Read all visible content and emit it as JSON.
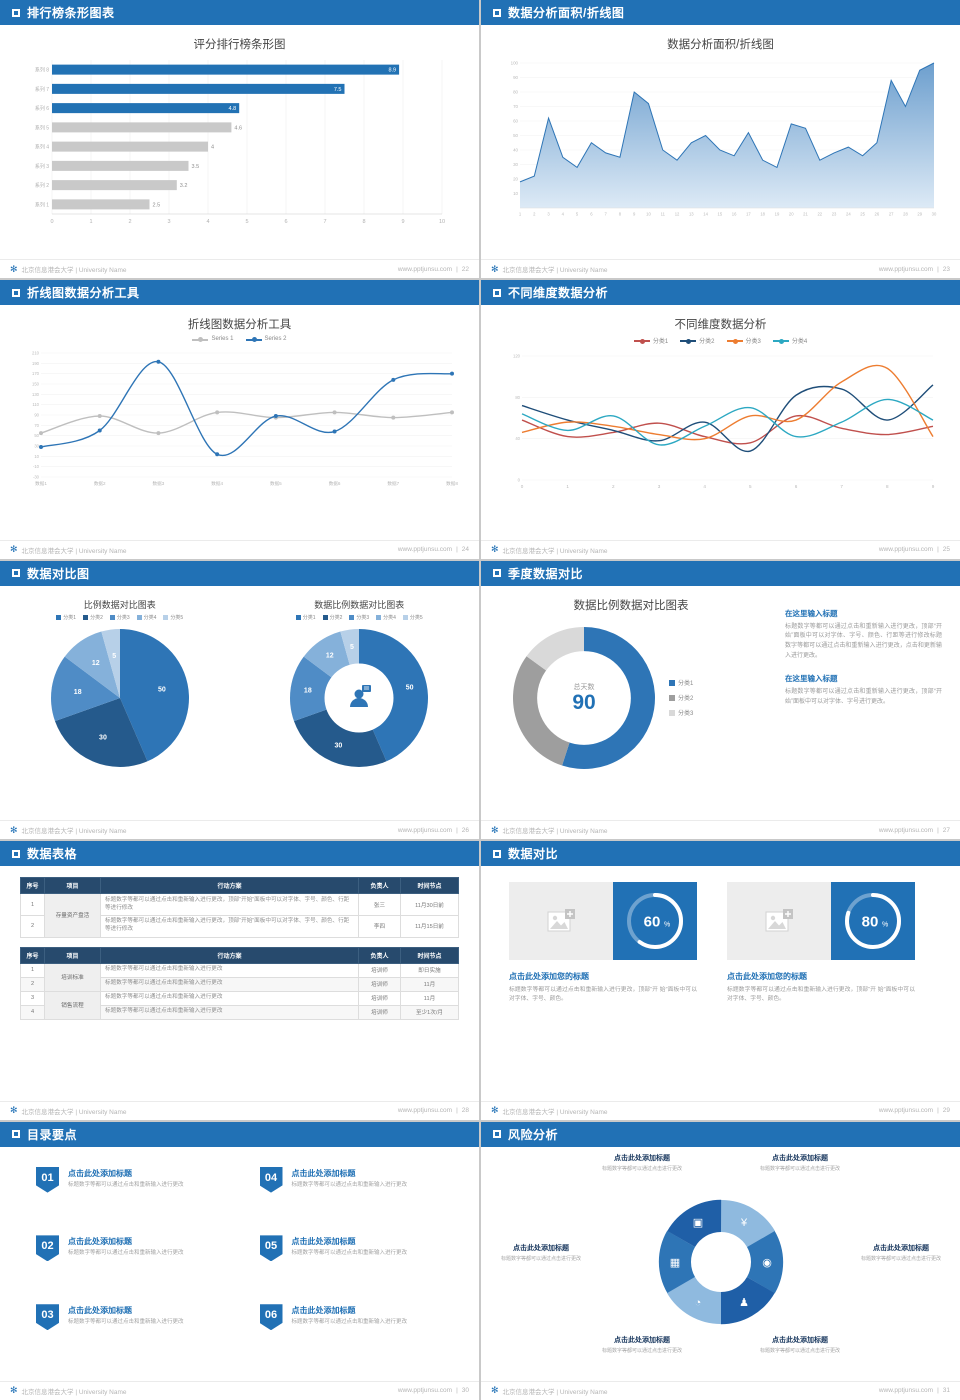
{
  "footer": {
    "logo": "✻",
    "org": "北京信息港会大学 | University Name",
    "url": "www.pptjunsu.com"
  },
  "slides": {
    "s22": {
      "header": "排行榜条形图表",
      "page": "22",
      "title": "评分排行榜条形图",
      "chart": {
        "type": "barh",
        "categories": [
          "系列 8",
          "系列 7",
          "系列 6",
          "系列 5",
          "系列 4",
          "系列 3",
          "系列 2",
          "系列 1"
        ],
        "values": [
          8.9,
          7.5,
          4.8,
          4.6,
          4,
          3.5,
          3.2,
          2.5
        ],
        "colors": [
          "#2272b4",
          "#2272b4",
          "#2272b4",
          "#c9c9c9",
          "#c9c9c9",
          "#c9c9c9",
          "#c9c9c9",
          "#c9c9c9"
        ],
        "label_inside": [
          true,
          true,
          true,
          false,
          false,
          false,
          false,
          false
        ],
        "xlim": [
          0,
          10
        ],
        "xticks": [
          0,
          1,
          2,
          3,
          4,
          5,
          6,
          7,
          8,
          9,
          10
        ]
      }
    },
    "s23": {
      "header": "数据分析面积/折线图",
      "page": "23",
      "title": "数据分析面积/折线图",
      "chart": {
        "type": "area",
        "x": [
          "1",
          "2",
          "3",
          "4",
          "5",
          "6",
          "7",
          "8",
          "9",
          "10",
          "11",
          "12",
          "13",
          "14",
          "15",
          "16",
          "17",
          "18",
          "19",
          "20",
          "21",
          "22",
          "23",
          "24",
          "25",
          "26",
          "27",
          "28",
          "29",
          "30"
        ],
        "values": [
          18,
          22,
          62,
          35,
          28,
          45,
          38,
          35,
          80,
          72,
          40,
          33,
          45,
          50,
          40,
          36,
          52,
          33,
          28,
          58,
          55,
          33,
          38,
          42,
          36,
          45,
          88,
          70,
          95,
          100
        ],
        "ylim": [
          0,
          100
        ],
        "yticks": [
          10,
          20,
          30,
          40,
          50,
          60,
          70,
          80,
          90,
          100
        ],
        "line_color": "#2e75b6",
        "fill_from": "#6d9fce",
        "fill_to": "#ddeaf6"
      }
    },
    "s24": {
      "header": "折线图数据分析工具",
      "page": "24",
      "title": "折线图数据分析工具",
      "legend": [
        {
          "label": "Series 1",
          "color": "#bfbfbf"
        },
        {
          "label": "Series 2",
          "color": "#2e75b6"
        }
      ],
      "chart": {
        "type": "line",
        "categories": [
          "数据1",
          "数据2",
          "数据3",
          "数据4",
          "数据5",
          "数据6",
          "数据7",
          "数据8"
        ],
        "ylim": [
          -30,
          210
        ],
        "yticks": [
          210,
          190,
          170,
          150,
          130,
          110,
          90,
          70,
          50,
          30,
          10,
          -10,
          -30
        ],
        "markers": true,
        "series": [
          {
            "name": "Series 1",
            "color": "#bfbfbf",
            "values": [
              55,
              88,
              55,
              95,
              85,
              95,
              85,
              95
            ]
          },
          {
            "name": "Series 2",
            "color": "#2e75b6",
            "values": [
              28,
              60,
              193,
              14,
              88,
              58,
              158,
              170
            ]
          }
        ]
      }
    },
    "s25": {
      "header": "不同维度数据分析",
      "page": "25",
      "title": "不同维度数据分析",
      "legend": [
        {
          "label": "分类1",
          "color": "#c0504d"
        },
        {
          "label": "分类2",
          "color": "#1f4e79"
        },
        {
          "label": "分类3",
          "color": "#ed7d31"
        },
        {
          "label": "分类4",
          "color": "#2ca8c2"
        }
      ],
      "chart": {
        "type": "line",
        "categories": [
          "0",
          "1",
          "2",
          "3",
          "4",
          "5",
          "6",
          "7",
          "8",
          "9"
        ],
        "ylim": [
          0,
          120
        ],
        "yticks": [
          0,
          40,
          80,
          120
        ],
        "markers": false,
        "series": [
          {
            "name": "分类1",
            "color": "#c0504d",
            "values": [
              58,
              42,
              46,
              55,
              42,
              36,
              62,
              50,
              44,
              52
            ]
          },
          {
            "name": "分类2",
            "color": "#1f4e79",
            "values": [
              72,
              58,
              48,
              38,
              56,
              28,
              82,
              88,
              58,
              92
            ]
          },
          {
            "name": "分类3",
            "color": "#ed7d31",
            "values": [
              46,
              56,
              52,
              44,
              40,
              62,
              58,
              95,
              108,
              42
            ]
          },
          {
            "name": "分类4",
            "color": "#2ca8c2",
            "values": [
              64,
              48,
              62,
              34,
              52,
              70,
              42,
              56,
              78,
              58
            ]
          }
        ]
      }
    },
    "s26": {
      "header": "数据对比图",
      "page": "26",
      "left": {
        "title": "比例数据对比图表",
        "legend": [
          {
            "label": "分类1",
            "color": "#2e75b6"
          },
          {
            "label": "分类2",
            "color": "#255a8c"
          },
          {
            "label": "分类3",
            "color": "#4f8cc6"
          },
          {
            "label": "分类4",
            "color": "#85b1da"
          },
          {
            "label": "分类5",
            "color": "#b7d0e8"
          }
        ],
        "chart": {
          "type": "pie",
          "values": [
            50,
            30,
            18,
            12,
            5
          ],
          "colors": [
            "#2e75b6",
            "#255a8c",
            "#4f8cc6",
            "#85b1da",
            "#b7d0e8"
          ],
          "inner": 0
        }
      },
      "right": {
        "title": "数据比例数据对比图表",
        "legend": [
          {
            "label": "分类1",
            "color": "#2e75b6"
          },
          {
            "label": "分类2",
            "color": "#255a8c"
          },
          {
            "label": "分类3",
            "color": "#4f8cc6"
          },
          {
            "label": "分类4",
            "color": "#85b1da"
          },
          {
            "label": "分类5",
            "color": "#b7d0e8"
          }
        ],
        "chart": {
          "type": "pie",
          "values": [
            50,
            30,
            18,
            12,
            5
          ],
          "colors": [
            "#2e75b6",
            "#255a8c",
            "#4f8cc6",
            "#85b1da",
            "#b7d0e8"
          ],
          "inner": 0.5,
          "center_icon": "person"
        }
      }
    },
    "s27": {
      "header": "季度数据对比",
      "page": "27",
      "title": "数据比例数据对比图表",
      "center_label": "总天数",
      "center_value": "90",
      "legend": [
        {
          "label": "分类1",
          "color": "#2e75b6"
        },
        {
          "label": "分类2",
          "color": "#9e9e9e"
        },
        {
          "label": "分类3",
          "color": "#d9d9d9"
        }
      ],
      "chart": {
        "type": "pie",
        "values": [
          55,
          30,
          15
        ],
        "colors": [
          "#2e75b6",
          "#9e9e9e",
          "#d9d9d9"
        ],
        "inner": 0.66,
        "labels": false
      },
      "blocks": [
        {
          "heading": "在这里输入标题",
          "body": "标题数字等都可以通过点击和重新输入进行更改，顶部“开始”面板中可以对字体、字号、颜色、行距等进行修改标题数字等都可以通过点击和重新输入进行更改，点击和更新输入进行更改。"
        },
        {
          "heading": "在这里输入标题",
          "body": "标题数字等都可以通过点击和重新输入进行更改，顶部“开始”面板中可以对字体、字号进行更改。"
        }
      ]
    },
    "s28": {
      "header": "数据表格",
      "page": "28",
      "t1": {
        "headers": [
          "序号",
          "项目",
          "行动方案",
          "负责人",
          "时间节点"
        ],
        "project": "存量资产盘活",
        "rows": [
          {
            "no": "1",
            "plan": "标题数字等都可以通过点击和重新输入进行更改，顶部“开始”面板中可以对字体、字号、颜色、行距等进行修改",
            "owner": "张三",
            "time": "11月30日前"
          },
          {
            "no": "2",
            "plan": "标题数字等都可以通过点击和重新输入进行更改，顶部“开始”面板中可以对字体、字号、颜色、行距等进行修改",
            "owner": "李四",
            "time": "11月15日前"
          }
        ]
      },
      "t2": {
        "headers": [
          "序号",
          "项目",
          "行动方案",
          "负责人",
          "时间节点"
        ],
        "projects": [
          "培训标准",
          "销售流程"
        ],
        "rows": [
          {
            "no": "1",
            "plan": "标题数字等都可以通过点击和重新输入进行更改",
            "owner": "培训师",
            "time": "即日实施"
          },
          {
            "no": "2",
            "plan": "标题数字等都可以通过点击和重新输入进行更改",
            "owner": "培训师",
            "time": "11月"
          },
          {
            "no": "3",
            "plan": "标题数字等都可以通过点击和重新输入进行更改",
            "owner": "培训师",
            "time": "11月"
          },
          {
            "no": "4",
            "plan": "标题数字等都可以通过点击和重新输入进行更改",
            "owner": "培训师",
            "time": "至少1次/月"
          }
        ]
      }
    },
    "s29": {
      "header": "数据对比",
      "page": "29",
      "cards": [
        {
          "ring": {
            "type": "ring",
            "pct": 60
          },
          "heading": "点击此处添加您的标题",
          "body": "标题数字等都可以通过点击和重新输入进行更改，顶部“开 始”面板中可以对字体、字号、颜色。"
        },
        {
          "ring": {
            "type": "ring",
            "pct": 80
          },
          "heading": "点击此处添加您的标题",
          "body": "标题数字等都可以通过点击和重新输入进行更改，顶部“开 始”面板中可以对字体、字号、颜色。"
        }
      ]
    },
    "s30": {
      "header": "目录要点",
      "page": "30",
      "items": [
        {
          "num": "01",
          "title": "点击此处添加标题",
          "desc": "标题数字等都可以通过点击和重新输入进行更改"
        },
        {
          "num": "02",
          "title": "点击此处添加标题",
          "desc": "标题数字等都可以通过点击和重新输入进行更改"
        },
        {
          "num": "03",
          "title": "点击此处添加标题",
          "desc": "标题数字等都可以通过点击和重新输入进行更改"
        },
        {
          "num": "04",
          "title": "点击此处添加标题",
          "desc": "标题数字等都可以通过点击和重新输入进行更改"
        },
        {
          "num": "05",
          "title": "点击此处添加标题",
          "desc": "标题数字等都可以通过点击和重新输入进行更改"
        },
        {
          "num": "06",
          "title": "点击此处添加标题",
          "desc": "标题数字等都可以通过点击和重新输入进行更改"
        }
      ]
    },
    "s31": {
      "header": "风险分析",
      "page": "31",
      "diagram": {
        "type": "pinwheel",
        "colors": [
          "#8fbadf",
          "#2e75b6",
          "#1f5fa7",
          "#8fbadf",
          "#2e75b6",
          "#1f5fa7"
        ],
        "icons": [
          {
            "name": "money-bag-icon",
            "glyph": "¥"
          },
          {
            "name": "coins-icon",
            "glyph": "◉"
          },
          {
            "name": "people-icon",
            "glyph": "♟"
          },
          {
            "name": "pie-chart-icon",
            "glyph": "◔"
          },
          {
            "name": "bank-icon",
            "glyph": "▦"
          },
          {
            "name": "chart-icon",
            "glyph": "▣"
          }
        ]
      },
      "labels": [
        {
          "title": "点击此处添加标题",
          "desc": "标题数字等都可以通过点击进行更改"
        },
        {
          "title": "点击此处添加标题",
          "desc": "标题数字等都可以通过点击进行更改"
        },
        {
          "title": "点击此处添加标题",
          "desc": "标题数字等都可以通过点击进行更改"
        },
        {
          "title": "点击此处添加标题",
          "desc": "标题数字等都可以通过点击进行更改"
        },
        {
          "title": "点击此处添加标题",
          "desc": "标题数字等都可以通过点击进行更改"
        },
        {
          "title": "点击此处添加标题",
          "desc": "标题数字等都可以通过点击进行更改"
        }
      ]
    }
  }
}
